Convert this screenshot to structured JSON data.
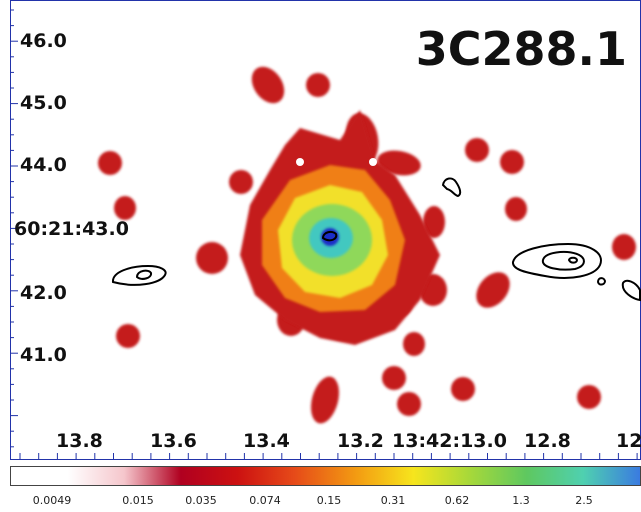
{
  "source_label": "3C288.1",
  "y_ticks": [
    "46.0",
    "45.0",
    "44.0",
    "60:21:43.0",
    "42.0",
    "41.0"
  ],
  "x_ticks": [
    "13.8",
    "13.6",
    "13.4",
    "13.2",
    "13:42:13.0",
    "12.8",
    "12"
  ],
  "colorbar": {
    "ticks": [
      "0.0049",
      "0.015",
      "0.035",
      "0.074",
      "0.15",
      "0.31",
      "0.62",
      "1.3",
      "2.5"
    ],
    "colors": [
      "#ffffff",
      "#ffffff",
      "#f5c6cc",
      "#b00020",
      "#cc1111",
      "#e64a19",
      "#f39c12",
      "#f6e51d",
      "#a6d83a",
      "#5ec860",
      "#4fd0b0",
      "#3a7be0"
    ]
  },
  "colormap": {
    "low": "#c41a1a",
    "mid_orange": "#f07f12",
    "mid_yellow": "#f2e02a",
    "mid_green": "#8fd85a",
    "high_cyan": "#42c8c0",
    "peak": "#1c2ec8"
  }
}
